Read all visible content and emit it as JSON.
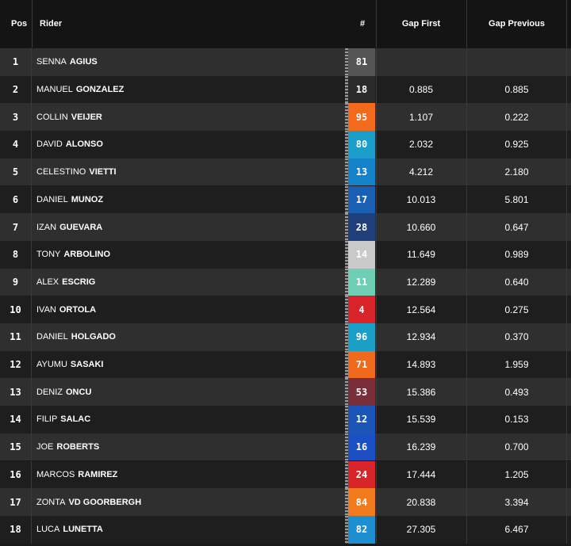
{
  "header": {
    "pos": "Pos",
    "rider": "Rider",
    "number": "#",
    "gap_first": "Gap First",
    "gap_previous": "Gap Previous"
  },
  "rows": [
    {
      "pos": "1",
      "first": "SENNA",
      "last": "AGIUS",
      "num": "81",
      "color": "#555555",
      "gap_first": "",
      "gap_previous": ""
    },
    {
      "pos": "2",
      "first": "MANUEL",
      "last": "GONZALEZ",
      "num": "18",
      "color": "#2b2b2b",
      "gap_first": "0.885",
      "gap_previous": "0.885"
    },
    {
      "pos": "3",
      "first": "COLLIN",
      "last": "VEIJER",
      "num": "95",
      "color": "#f26b1d",
      "gap_first": "1.107",
      "gap_previous": "0.222"
    },
    {
      "pos": "4",
      "first": "DAVID",
      "last": "ALONSO",
      "num": "80",
      "color": "#1a9ec9",
      "gap_first": "2.032",
      "gap_previous": "0.925"
    },
    {
      "pos": "5",
      "first": "CELESTINO",
      "last": "VIETTI",
      "num": "13",
      "color": "#1482c8",
      "gap_first": "4.212",
      "gap_previous": "2.180"
    },
    {
      "pos": "6",
      "first": "DANIEL",
      "last": "MUNOZ",
      "num": "17",
      "color": "#1a5fb4",
      "gap_first": "10.013",
      "gap_previous": "5.801"
    },
    {
      "pos": "7",
      "first": "IZAN",
      "last": "GUEVARA",
      "num": "28",
      "color": "#1f3f7a",
      "gap_first": "10.660",
      "gap_previous": "0.647"
    },
    {
      "pos": "8",
      "first": "TONY",
      "last": "ARBOLINO",
      "num": "14",
      "color": "#c9c9c9",
      "gap_first": "11.649",
      "gap_previous": "0.989"
    },
    {
      "pos": "9",
      "first": "ALEX",
      "last": "ESCRIG",
      "num": "11",
      "color": "#6fcfb5",
      "gap_first": "12.289",
      "gap_previous": "0.640"
    },
    {
      "pos": "10",
      "first": "IVAN",
      "last": "ORTOLA",
      "num": "4",
      "color": "#d8232a",
      "gap_first": "12.564",
      "gap_previous": "0.275"
    },
    {
      "pos": "11",
      "first": "DANIEL",
      "last": "HOLGADO",
      "num": "96",
      "color": "#1aa0c6",
      "gap_first": "12.934",
      "gap_previous": "0.370"
    },
    {
      "pos": "12",
      "first": "AYUMU",
      "last": "SASAKI",
      "num": "71",
      "color": "#f06a1e",
      "gap_first": "14.893",
      "gap_previous": "1.959"
    },
    {
      "pos": "13",
      "first": "DENIZ",
      "last": "ONCU",
      "num": "53",
      "color": "#7a2e3a",
      "gap_first": "15.386",
      "gap_previous": "0.493"
    },
    {
      "pos": "14",
      "first": "FILIP",
      "last": "SALAC",
      "num": "12",
      "color": "#1b55b8",
      "gap_first": "15.539",
      "gap_previous": "0.153"
    },
    {
      "pos": "15",
      "first": "JOE",
      "last": "ROBERTS",
      "num": "16",
      "color": "#1c4fc4",
      "gap_first": "16.239",
      "gap_previous": "0.700"
    },
    {
      "pos": "16",
      "first": "MARCOS",
      "last": "RAMIREZ",
      "num": "24",
      "color": "#d9252a",
      "gap_first": "17.444",
      "gap_previous": "1.205"
    },
    {
      "pos": "17",
      "first": "ZONTA",
      "last": "VD GOORBERGH",
      "num": "84",
      "color": "#f07a1c",
      "gap_first": "20.838",
      "gap_previous": "3.394"
    },
    {
      "pos": "18",
      "first": "LUCA",
      "last": "LUNETTA",
      "num": "82",
      "color": "#1d8fd0",
      "gap_first": "27.305",
      "gap_previous": "6.467"
    }
  ]
}
